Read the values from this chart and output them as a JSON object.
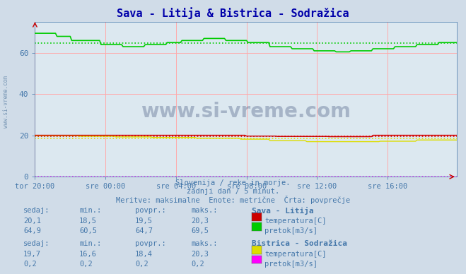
{
  "title": "Sava - Litija & Bistrica - Sodražica",
  "bg_color": "#d0dce8",
  "plot_bg_color": "#dce8f0",
  "grid_color": "#ffaaaa",
  "title_color": "#0000aa",
  "axis_label_color": "#4477aa",
  "text_color": "#4477aa",
  "watermark": "www.si-vreme.com",
  "subtitle_lines": [
    "Slovenija / reke in morje.",
    "zadnji dan / 5 minut.",
    "Meritve: maksimalne  Enote: metrične  Črta: povprečje"
  ],
  "x_ticks_labels": [
    "tor 20:00",
    "sre 00:00",
    "sre 04:00",
    "sre 08:00",
    "sre 12:00",
    "sre 16:00"
  ],
  "y_ticks": [
    0,
    20,
    40,
    60
  ],
  "ylim": [
    0,
    75
  ],
  "n_points": 288,
  "sava_litija_temp_color": "#cc0000",
  "sava_litija_pretok_color": "#00cc00",
  "bistrica_temp_color": "#dddd00",
  "bistrica_pretok_color": "#ff00ff",
  "sava_litija_temp_avg": 19.5,
  "sava_litija_pretok_avg": 64.7,
  "bistrica_temp_avg": 18.4,
  "bistrica_pretok_avg": 0.2,
  "legend1_title": "Sava - Litija",
  "legend2_title": "Bistrica - Sodražica",
  "legend1_items": [
    {
      "label": "temperatura[C]",
      "color": "#cc0000",
      "sedaj": "20,1",
      "min": "18,5",
      "povpr": "19,5",
      "maks": "20,3"
    },
    {
      "label": "pretok[m3/s]",
      "color": "#00cc00",
      "sedaj": "64,9",
      "min": "60,5",
      "povpr": "64,7",
      "maks": "69,5"
    }
  ],
  "legend2_items": [
    {
      "label": "temperatura[C]",
      "color": "#dddd00",
      "sedaj": "19,7",
      "min": "16,6",
      "povpr": "18,4",
      "maks": "20,3"
    },
    {
      "label": "pretok[m3/s]",
      "color": "#ff00ff",
      "sedaj": "0,2",
      "min": "0,2",
      "povpr": "0,2",
      "maks": "0,2"
    }
  ]
}
